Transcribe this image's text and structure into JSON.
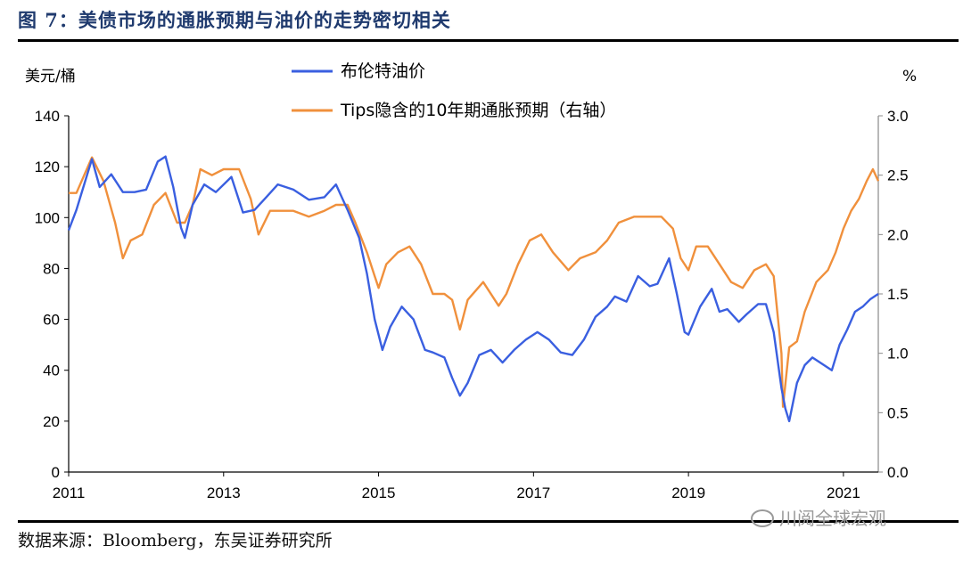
{
  "header": {
    "title": "图 7：美债市场的通胀预期与油价的走势密切相关"
  },
  "footer": {
    "source": "数据来源：Bloomberg，东吴证券研究所"
  },
  "watermark": {
    "text": "川阅全球宏观"
  },
  "chart_data": {
    "type": "line",
    "title": "",
    "left_axis": {
      "unit": "美元/桶",
      "min": 0,
      "max": 140,
      "ticks": [
        0,
        20,
        40,
        60,
        80,
        100,
        120,
        140
      ]
    },
    "right_axis": {
      "unit": "%",
      "min": 0.0,
      "max": 3.0,
      "ticks": [
        "0.0",
        "0.5",
        "1.0",
        "1.5",
        "2.0",
        "2.5",
        "3.0"
      ]
    },
    "x_axis": {
      "min": 2011.0,
      "max": 2021.45,
      "ticks": [
        "2011",
        "2013",
        "2015",
        "2017",
        "2019",
        "2021"
      ]
    },
    "legend": {
      "placement": "top-center"
    },
    "grid": false,
    "series": [
      {
        "name": "布伦特油价",
        "axis": "left",
        "color": "#3a5fe0",
        "points": [
          [
            2011.0,
            95
          ],
          [
            2011.1,
            103
          ],
          [
            2011.2,
            113
          ],
          [
            2011.3,
            123
          ],
          [
            2011.4,
            112
          ],
          [
            2011.55,
            117
          ],
          [
            2011.7,
            110
          ],
          [
            2011.85,
            110
          ],
          [
            2012.0,
            111
          ],
          [
            2012.15,
            122
          ],
          [
            2012.25,
            124
          ],
          [
            2012.35,
            112
          ],
          [
            2012.45,
            96
          ],
          [
            2012.5,
            92
          ],
          [
            2012.6,
            105
          ],
          [
            2012.75,
            113
          ],
          [
            2012.9,
            110
          ],
          [
            2013.1,
            116
          ],
          [
            2013.25,
            102
          ],
          [
            2013.4,
            103
          ],
          [
            2013.55,
            108
          ],
          [
            2013.7,
            113
          ],
          [
            2013.9,
            111
          ],
          [
            2014.1,
            107
          ],
          [
            2014.3,
            108
          ],
          [
            2014.45,
            113
          ],
          [
            2014.6,
            103
          ],
          [
            2014.75,
            92
          ],
          [
            2014.85,
            78
          ],
          [
            2014.95,
            60
          ],
          [
            2015.05,
            48
          ],
          [
            2015.15,
            57
          ],
          [
            2015.3,
            65
          ],
          [
            2015.45,
            60
          ],
          [
            2015.6,
            48
          ],
          [
            2015.7,
            47
          ],
          [
            2015.85,
            45
          ],
          [
            2015.95,
            37
          ],
          [
            2016.05,
            30
          ],
          [
            2016.15,
            35
          ],
          [
            2016.3,
            46
          ],
          [
            2016.45,
            48
          ],
          [
            2016.6,
            43
          ],
          [
            2016.75,
            48
          ],
          [
            2016.9,
            52
          ],
          [
            2017.05,
            55
          ],
          [
            2017.2,
            52
          ],
          [
            2017.35,
            47
          ],
          [
            2017.5,
            46
          ],
          [
            2017.65,
            52
          ],
          [
            2017.8,
            61
          ],
          [
            2017.95,
            65
          ],
          [
            2018.05,
            69
          ],
          [
            2018.2,
            67
          ],
          [
            2018.35,
            77
          ],
          [
            2018.5,
            73
          ],
          [
            2018.6,
            74
          ],
          [
            2018.75,
            84
          ],
          [
            2018.85,
            70
          ],
          [
            2018.95,
            55
          ],
          [
            2019.0,
            54
          ],
          [
            2019.15,
            65
          ],
          [
            2019.3,
            72
          ],
          [
            2019.4,
            63
          ],
          [
            2019.5,
            64
          ],
          [
            2019.65,
            59
          ],
          [
            2019.75,
            62
          ],
          [
            2019.9,
            66
          ],
          [
            2020.0,
            66
          ],
          [
            2020.1,
            55
          ],
          [
            2020.2,
            33
          ],
          [
            2020.25,
            25
          ],
          [
            2020.3,
            20
          ],
          [
            2020.4,
            35
          ],
          [
            2020.5,
            42
          ],
          [
            2020.6,
            45
          ],
          [
            2020.75,
            42
          ],
          [
            2020.85,
            40
          ],
          [
            2020.95,
            50
          ],
          [
            2021.05,
            56
          ],
          [
            2021.15,
            63
          ],
          [
            2021.25,
            65
          ],
          [
            2021.35,
            68
          ],
          [
            2021.45,
            70
          ]
        ]
      },
      {
        "name": "Tips隐含的10年期通胀预期（右轴）",
        "axis": "right",
        "color": "#f0903c",
        "points": [
          [
            2011.0,
            2.35
          ],
          [
            2011.1,
            2.35
          ],
          [
            2011.2,
            2.5
          ],
          [
            2011.3,
            2.65
          ],
          [
            2011.45,
            2.45
          ],
          [
            2011.6,
            2.1
          ],
          [
            2011.7,
            1.8
          ],
          [
            2011.8,
            1.95
          ],
          [
            2011.95,
            2.0
          ],
          [
            2012.1,
            2.25
          ],
          [
            2012.25,
            2.35
          ],
          [
            2012.4,
            2.1
          ],
          [
            2012.5,
            2.1
          ],
          [
            2012.6,
            2.25
          ],
          [
            2012.7,
            2.55
          ],
          [
            2012.85,
            2.5
          ],
          [
            2013.0,
            2.55
          ],
          [
            2013.2,
            2.55
          ],
          [
            2013.35,
            2.3
          ],
          [
            2013.45,
            2.0
          ],
          [
            2013.6,
            2.2
          ],
          [
            2013.75,
            2.2
          ],
          [
            2013.9,
            2.2
          ],
          [
            2014.1,
            2.15
          ],
          [
            2014.3,
            2.2
          ],
          [
            2014.45,
            2.25
          ],
          [
            2014.6,
            2.25
          ],
          [
            2014.7,
            2.1
          ],
          [
            2014.85,
            1.85
          ],
          [
            2014.95,
            1.65
          ],
          [
            2015.0,
            1.55
          ],
          [
            2015.1,
            1.75
          ],
          [
            2015.25,
            1.85
          ],
          [
            2015.4,
            1.9
          ],
          [
            2015.55,
            1.75
          ],
          [
            2015.7,
            1.5
          ],
          [
            2015.85,
            1.5
          ],
          [
            2015.95,
            1.45
          ],
          [
            2016.05,
            1.2
          ],
          [
            2016.15,
            1.45
          ],
          [
            2016.35,
            1.6
          ],
          [
            2016.55,
            1.4
          ],
          [
            2016.65,
            1.5
          ],
          [
            2016.8,
            1.75
          ],
          [
            2016.95,
            1.95
          ],
          [
            2017.1,
            2.0
          ],
          [
            2017.25,
            1.85
          ],
          [
            2017.45,
            1.7
          ],
          [
            2017.6,
            1.8
          ],
          [
            2017.8,
            1.85
          ],
          [
            2017.95,
            1.95
          ],
          [
            2018.1,
            2.1
          ],
          [
            2018.3,
            2.15
          ],
          [
            2018.5,
            2.15
          ],
          [
            2018.65,
            2.15
          ],
          [
            2018.8,
            2.05
          ],
          [
            2018.9,
            1.8
          ],
          [
            2019.0,
            1.7
          ],
          [
            2019.1,
            1.9
          ],
          [
            2019.25,
            1.9
          ],
          [
            2019.4,
            1.75
          ],
          [
            2019.55,
            1.6
          ],
          [
            2019.7,
            1.55
          ],
          [
            2019.85,
            1.7
          ],
          [
            2020.0,
            1.75
          ],
          [
            2020.1,
            1.65
          ],
          [
            2020.2,
            1.0
          ],
          [
            2020.22,
            0.55
          ],
          [
            2020.3,
            1.05
          ],
          [
            2020.4,
            1.1
          ],
          [
            2020.5,
            1.35
          ],
          [
            2020.65,
            1.6
          ],
          [
            2020.8,
            1.7
          ],
          [
            2020.9,
            1.85
          ],
          [
            2021.0,
            2.05
          ],
          [
            2021.1,
            2.2
          ],
          [
            2021.2,
            2.3
          ],
          [
            2021.3,
            2.45
          ],
          [
            2021.38,
            2.55
          ],
          [
            2021.45,
            2.45
          ]
        ]
      }
    ]
  }
}
